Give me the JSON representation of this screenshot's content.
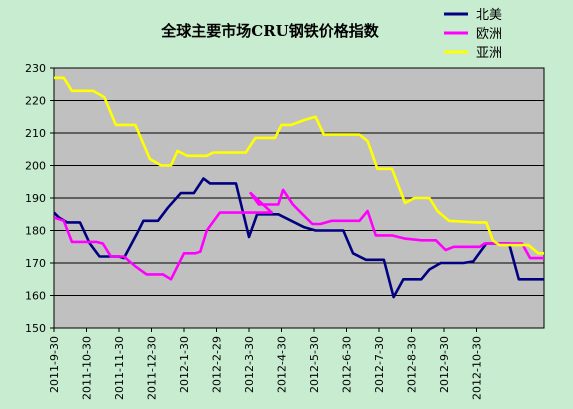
{
  "chart_data": {
    "type": "line",
    "title": "全球主要市场CRU钢铁价格指数",
    "xlabel": "",
    "ylabel": "",
    "ylim": [
      150,
      230
    ],
    "yticks": [
      150,
      160,
      170,
      180,
      190,
      200,
      210,
      220,
      230
    ],
    "grid": true,
    "legend": "top-right",
    "x_tick_labels": [
      "2011-9-30",
      "2011-10-30",
      "2011-11-30",
      "2011-12-30",
      "2012-1-30",
      "2012-2-29",
      "2012-3-30",
      "2012-4-30",
      "2012-5-30",
      "2012-6-30",
      "2012-7-30",
      "2012-8-30",
      "2012-9-30",
      "2012-10-30"
    ],
    "colors": {
      "plot_bg": "#c0c0c0",
      "page_bg": "#c8ecd0",
      "title": "#000000"
    },
    "series": [
      {
        "name": "北美",
        "color": "#000080",
        "points": [
          [
            0,
            185.5
          ],
          [
            0.15,
            184
          ],
          [
            0.4,
            182.5
          ],
          [
            0.8,
            182.5
          ],
          [
            1.1,
            176
          ],
          [
            1.4,
            172
          ],
          [
            2,
            172
          ],
          [
            2.15,
            171.5
          ],
          [
            2.55,
            179
          ],
          [
            2.75,
            183
          ],
          [
            3.2,
            183
          ],
          [
            3.5,
            187
          ],
          [
            3.9,
            191.5
          ],
          [
            4.3,
            191.5
          ],
          [
            4.6,
            196
          ],
          [
            4.8,
            194.5
          ],
          [
            5.6,
            194.5
          ],
          [
            6,
            178
          ],
          [
            6.25,
            185
          ],
          [
            6.9,
            185
          ],
          [
            7.3,
            183
          ],
          [
            7.7,
            181
          ],
          [
            8.05,
            180
          ],
          [
            8.9,
            180
          ],
          [
            9.2,
            173
          ],
          [
            9.6,
            171
          ],
          [
            10.15,
            171
          ],
          [
            10.45,
            159.5
          ],
          [
            10.75,
            165
          ],
          [
            11.3,
            165
          ],
          [
            11.55,
            168
          ],
          [
            11.9,
            170
          ],
          [
            12.6,
            170
          ],
          [
            12.9,
            170.5
          ],
          [
            13.3,
            176
          ],
          [
            14,
            176
          ],
          [
            14.3,
            165
          ],
          [
            14.9,
            165
          ],
          [
            15.3,
            165
          ],
          [
            15.55,
            160
          ],
          [
            15.85,
            166
          ],
          [
            16,
            166
          ]
        ]
      },
      {
        "name": "欧洲",
        "color": "#ff00ff",
        "points": [
          [
            0,
            184
          ],
          [
            0.3,
            183
          ],
          [
            0.55,
            176.5
          ],
          [
            1.3,
            176.5
          ],
          [
            1.5,
            176
          ],
          [
            1.75,
            172
          ],
          [
            2.15,
            172
          ],
          [
            2.5,
            169
          ],
          [
            2.85,
            166.5
          ],
          [
            3.35,
            166.5
          ],
          [
            3.6,
            165
          ],
          [
            4,
            173
          ],
          [
            4.35,
            173
          ],
          [
            4.5,
            173.5
          ],
          [
            4.7,
            180
          ],
          [
            5.1,
            185.5
          ],
          [
            6.7,
            185.5
          ],
          [
            6.05,
            191.5
          ],
          [
            6.3,
            188
          ],
          [
            6.9,
            188
          ],
          [
            7.05,
            192.5
          ],
          [
            7.35,
            188
          ],
          [
            7.65,
            185
          ],
          [
            7.95,
            182
          ],
          [
            8.2,
            182
          ],
          [
            8.55,
            183
          ],
          [
            9.4,
            183
          ],
          [
            9.65,
            186
          ],
          [
            9.9,
            178.5
          ],
          [
            10.4,
            178.5
          ],
          [
            10.8,
            177.5
          ],
          [
            11.3,
            177
          ],
          [
            11.75,
            177
          ],
          [
            12.05,
            174
          ],
          [
            12.3,
            175
          ],
          [
            13.1,
            175
          ],
          [
            13.25,
            176
          ],
          [
            14.4,
            176
          ],
          [
            14.65,
            171.5
          ],
          [
            15.2,
            171.5
          ],
          [
            15.45,
            171.5
          ],
          [
            15.75,
            172
          ],
          [
            15.95,
            165
          ],
          [
            16,
            165
          ]
        ]
      },
      {
        "name": "亚洲",
        "color": "#ffff00",
        "points": [
          [
            0,
            227
          ],
          [
            0.3,
            227
          ],
          [
            0.55,
            223
          ],
          [
            1.2,
            223
          ],
          [
            1.55,
            221
          ],
          [
            1.9,
            212.5
          ],
          [
            2.5,
            212.5
          ],
          [
            2.95,
            202
          ],
          [
            3.3,
            200
          ],
          [
            3.6,
            200
          ],
          [
            3.8,
            204.5
          ],
          [
            4.1,
            203
          ],
          [
            4.7,
            203
          ],
          [
            4.9,
            204
          ],
          [
            5.9,
            204
          ],
          [
            6.2,
            208.5
          ],
          [
            6.8,
            208.5
          ],
          [
            7,
            212.5
          ],
          [
            7.3,
            212.5
          ],
          [
            7.7,
            214
          ],
          [
            8.05,
            215
          ],
          [
            8.3,
            209.5
          ],
          [
            8.9,
            209.5
          ],
          [
            9.4,
            209.5
          ],
          [
            9.65,
            207.5
          ],
          [
            9.95,
            199
          ],
          [
            10.4,
            199
          ],
          [
            10.8,
            188.5
          ],
          [
            11.1,
            190
          ],
          [
            11.55,
            190
          ],
          [
            11.8,
            186
          ],
          [
            12.15,
            183
          ],
          [
            13,
            182.5
          ],
          [
            13.3,
            182.5
          ],
          [
            13.5,
            177
          ],
          [
            13.7,
            175.5
          ],
          [
            14.6,
            175.5
          ],
          [
            14.9,
            173
          ],
          [
            15.5,
            173
          ],
          [
            15.8,
            177
          ],
          [
            16,
            177
          ]
        ]
      }
    ]
  }
}
